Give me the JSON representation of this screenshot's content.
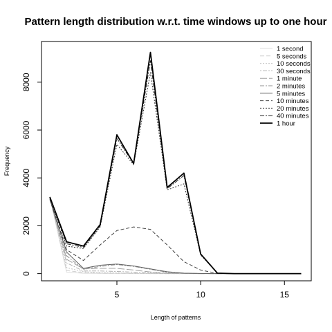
{
  "chart_data": {
    "type": "line",
    "title": "Pattern length distribution w.r.t. time windows up to one hour",
    "xlabel": "Length of patterns",
    "ylabel": "Frequency",
    "xlim": [
      0.5,
      16.6
    ],
    "ylim": [
      -300,
      9700
    ],
    "xticks": [
      5,
      10,
      15
    ],
    "yticks": [
      0,
      2000,
      4000,
      6000,
      8000
    ],
    "grid": false,
    "legend_position": "top-right",
    "x": [
      1,
      2,
      3,
      4,
      5,
      6,
      7,
      8,
      9,
      10,
      11,
      12,
      13,
      14,
      15,
      16
    ],
    "series": [
      {
        "name": "1 second",
        "color": "#dddddd",
        "dash": "",
        "width": 1,
        "values": [
          3200,
          60,
          15,
          5,
          2,
          1,
          0,
          0,
          0,
          0,
          0,
          0,
          0,
          0,
          0,
          0
        ]
      },
      {
        "name": "5 seconds",
        "color": "#d0d0d0",
        "dash": "6,3",
        "width": 1,
        "values": [
          3200,
          130,
          40,
          20,
          10,
          5,
          2,
          0,
          0,
          0,
          0,
          0,
          0,
          0,
          0,
          0
        ]
      },
      {
        "name": "10 seconds",
        "color": "#c0c0c0",
        "dash": "2,2",
        "width": 1,
        "values": [
          3200,
          250,
          80,
          50,
          30,
          15,
          5,
          2,
          0,
          0,
          0,
          0,
          0,
          0,
          0,
          0
        ]
      },
      {
        "name": "30 seconds",
        "color": "#b0b0b0",
        "dash": "2,2,6,2",
        "width": 1,
        "values": [
          3150,
          450,
          110,
          110,
          90,
          60,
          30,
          10,
          3,
          1,
          0,
          0,
          0,
          0,
          0,
          0
        ]
      },
      {
        "name": "1 minute",
        "color": "#a0a0a0",
        "dash": "10,3",
        "width": 1,
        "values": [
          3150,
          600,
          200,
          220,
          220,
          150,
          70,
          20,
          6,
          2,
          0,
          0,
          0,
          0,
          0,
          0
        ]
      },
      {
        "name": "2 minutes",
        "color": "#909090",
        "dash": "6,2,2,2",
        "width": 1,
        "values": [
          3100,
          750,
          180,
          300,
          380,
          300,
          180,
          60,
          15,
          3,
          0,
          0,
          0,
          0,
          0,
          0
        ]
      },
      {
        "name": "5 minutes",
        "color": "#606060",
        "dash": "",
        "width": 1,
        "values": [
          3100,
          900,
          220,
          350,
          400,
          320,
          200,
          80,
          20,
          5,
          0,
          0,
          0,
          0,
          0,
          0
        ]
      },
      {
        "name": "10 minutes",
        "color": "#404040",
        "dash": "5,3",
        "width": 1,
        "values": [
          3100,
          1000,
          550,
          1200,
          1800,
          1950,
          1850,
          1200,
          500,
          150,
          10,
          0,
          0,
          0,
          0,
          0
        ]
      },
      {
        "name": "20 minutes",
        "color": "#303030",
        "dash": "2,2",
        "width": 1,
        "values": [
          3150,
          1150,
          1050,
          1950,
          5400,
          4550,
          8400,
          3500,
          3750,
          780,
          20,
          0,
          0,
          0,
          0,
          0
        ]
      },
      {
        "name": "40 minutes",
        "color": "#202020",
        "dash": "6,2,2,2",
        "width": 1,
        "values": [
          3200,
          1250,
          1100,
          2000,
          5650,
          4600,
          8900,
          3550,
          4100,
          800,
          20,
          0,
          0,
          0,
          0,
          0
        ]
      },
      {
        "name": "1 hour",
        "color": "#000000",
        "dash": "",
        "width": 1.8,
        "values": [
          3200,
          1330,
          1150,
          2050,
          5800,
          4600,
          9250,
          3600,
          4200,
          820,
          20,
          0,
          0,
          0,
          0,
          0
        ]
      }
    ]
  }
}
